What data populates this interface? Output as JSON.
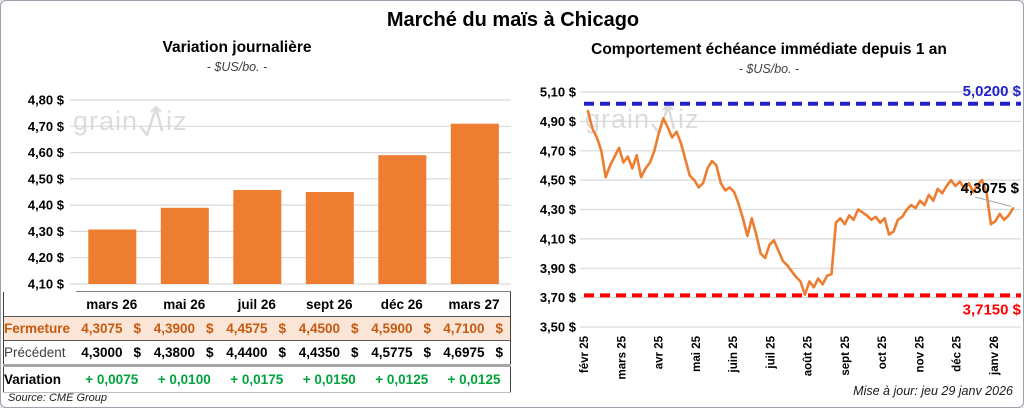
{
  "page": {
    "title": "Marché du maïs à Chicago",
    "source": "Source: CME Group",
    "updated": "Mise à jour: jeu 29 janv 2026",
    "watermark_pre": "grain",
    "watermark_post": "iz"
  },
  "colors": {
    "orange": "#ED7D31",
    "blue": "#2222CC",
    "red": "#FF0000",
    "green": "#00A33C",
    "brown": "#C55A11",
    "peach_bg": "#FBE5D6",
    "grid": "#D9D9D9",
    "leader": "#A6A6A6",
    "watermark": "#DCDCDC"
  },
  "chart_data": [
    {
      "type": "bar",
      "title": "Variation journalière",
      "subtitle": "- $US/bo. -",
      "categories": [
        "mars 26",
        "mai 26",
        "juil 26",
        "sept 26",
        "déc 26",
        "mars 27"
      ],
      "values": [
        4.3075,
        4.39,
        4.4575,
        4.45,
        4.59,
        4.71
      ],
      "ylim": [
        4.1,
        4.8
      ],
      "ytick_step": 0.1,
      "grid": true,
      "bar_color": "#ED7D31"
    },
    {
      "type": "line",
      "title": "Comportement échéance immédiate depuis 1 an",
      "subtitle": "- $US/bo. -",
      "x_labels": [
        "févr 25",
        "mars 25",
        "avr 25",
        "mai 25",
        "juin 25",
        "juil 25",
        "août 25",
        "sept 25",
        "oct 25",
        "nov 25",
        "déc 25",
        "janv 26"
      ],
      "values": [
        4.97,
        4.85,
        4.79,
        4.7,
        4.52,
        4.6,
        4.66,
        4.72,
        4.62,
        4.66,
        4.58,
        4.67,
        4.52,
        4.58,
        4.62,
        4.7,
        4.82,
        4.92,
        4.86,
        4.79,
        4.83,
        4.75,
        4.64,
        4.53,
        4.5,
        4.45,
        4.48,
        4.58,
        4.63,
        4.6,
        4.48,
        4.43,
        4.45,
        4.42,
        4.34,
        4.24,
        4.12,
        4.24,
        4.13,
        4.0,
        3.97,
        4.06,
        4.09,
        4.02,
        3.95,
        3.92,
        3.88,
        3.84,
        3.81,
        3.72,
        3.81,
        3.77,
        3.83,
        3.79,
        3.85,
        3.86,
        4.21,
        4.24,
        4.2,
        4.26,
        4.23,
        4.3,
        4.28,
        4.26,
        4.23,
        4.25,
        4.21,
        4.24,
        4.13,
        4.15,
        4.23,
        4.25,
        4.3,
        4.33,
        4.31,
        4.36,
        4.33,
        4.4,
        4.36,
        4.44,
        4.41,
        4.46,
        4.5,
        4.46,
        4.49,
        4.44,
        4.48,
        4.42,
        4.47,
        4.5,
        4.42,
        4.2,
        4.22,
        4.27,
        4.23,
        4.26,
        4.3075
      ],
      "ylim": [
        3.5,
        5.1
      ],
      "ytick_step": 0.2,
      "grid": true,
      "line_color": "#ED7D31",
      "high_line": {
        "value": 5.02,
        "label": "5,0200 $"
      },
      "low_line": {
        "value": 3.715,
        "label": "3,7150 $"
      },
      "last_label": "4,3075 $"
    }
  ],
  "table": {
    "rows": [
      {
        "style": "close",
        "label": "Fermeture",
        "suffix": "$",
        "values": [
          "4,3075",
          "4,3900",
          "4,4575",
          "4,4500",
          "4,5900",
          "4,7100"
        ]
      },
      {
        "style": "prev",
        "label": "Précédent",
        "suffix": "$",
        "values": [
          "4,3000",
          "4,3800",
          "4,4400",
          "4,4350",
          "4,5775",
          "4,6975"
        ]
      },
      {
        "style": "var",
        "label": "Variation",
        "suffix": "",
        "values": [
          "+ 0,0075",
          "+ 0,0100",
          "+ 0,0175",
          "+ 0,0150",
          "+ 0,0125",
          "+ 0,0125"
        ]
      }
    ]
  }
}
